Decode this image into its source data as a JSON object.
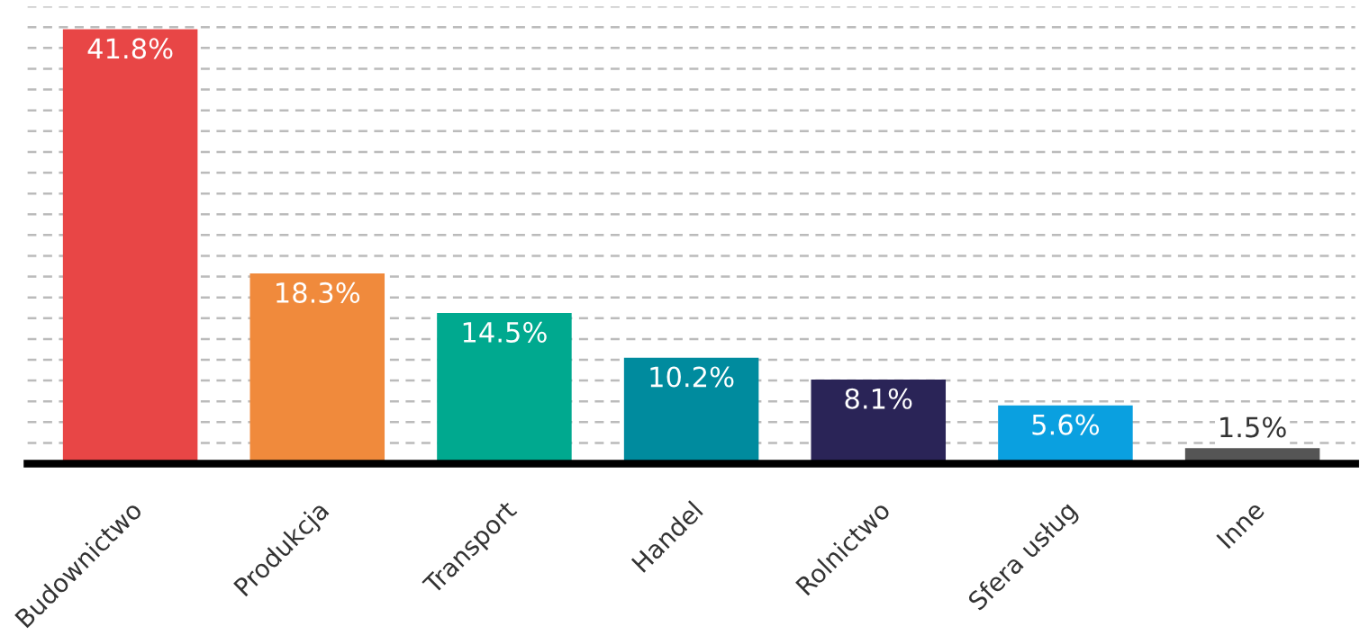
{
  "chart_data": {
    "type": "bar",
    "categories": [
      "Budownictwo",
      "Produkcja",
      "Transport",
      "Handel",
      "Rolnictwo",
      "Sfera usług",
      "Inne"
    ],
    "values": [
      41.8,
      18.3,
      14.5,
      10.2,
      8.1,
      5.6,
      1.5
    ],
    "colors": [
      "#e84646",
      "#f08a3c",
      "#00a98f",
      "#008b9e",
      "#2a2457",
      "#0aa0e0",
      "#555555"
    ],
    "value_labels": [
      "41.8%",
      "18.3%",
      "14.5%",
      "10.2%",
      "8.1%",
      "5.6%",
      "1.5%"
    ],
    "ylim": [
      0,
      44
    ],
    "yticks": [
      {
        "value": 2,
        "label": null
      },
      {
        "value": 4,
        "label": null
      },
      {
        "value": 6,
        "label": null
      },
      {
        "value": 8,
        "label": null
      },
      {
        "value": 10,
        "label": null
      },
      {
        "value": 12,
        "label": null
      },
      {
        "value": 14,
        "label": null
      },
      {
        "value": 16,
        "label": null
      },
      {
        "value": 18,
        "label": null
      },
      {
        "value": 20,
        "label": null
      },
      {
        "value": 22,
        "label": null
      },
      {
        "value": 24,
        "label": null
      },
      {
        "value": 26,
        "label": null
      },
      {
        "value": 28,
        "label": null
      },
      {
        "value": 30,
        "label": null
      },
      {
        "value": 32,
        "label": null
      },
      {
        "value": 34,
        "label": null
      },
      {
        "value": 36,
        "label": null
      },
      {
        "value": 38,
        "label": null
      },
      {
        "value": 40,
        "label": null
      },
      {
        "value": 42,
        "label": null
      },
      {
        "value": 44,
        "label": null
      }
    ],
    "grid": "y",
    "tick_labels": "x"
  }
}
